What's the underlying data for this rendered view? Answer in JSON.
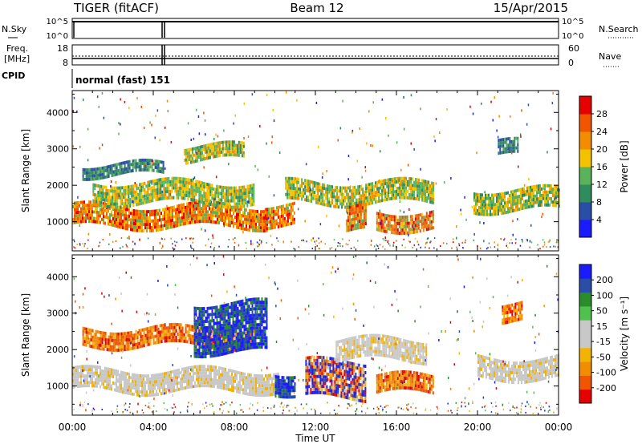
{
  "header": {
    "title": "TIGER (fitACF)",
    "beam": "Beam 12",
    "date": "15/Apr/2015"
  },
  "side_labels": {
    "nsky": "N.Sky",
    "nsearch": "N.Search",
    "freq_line1": "Freq.",
    "freq_line2": "[MHz]",
    "nave": "Nave",
    "cpid": "CPID",
    "cpid_value": "normal (fast) 151"
  },
  "strip_ticks": {
    "nsky_left": [
      "10^5",
      "10^0"
    ],
    "nsky_right": [
      "10^5",
      "10^0"
    ],
    "freq_left": [
      "18",
      "8"
    ],
    "freq_right": [
      "60",
      "0"
    ]
  },
  "colors": {
    "power_scale": [
      "#1b1bff",
      "#2a4ea8",
      "#2f8c5c",
      "#5ab25a",
      "#f2c200",
      "#f28c00",
      "#f25500",
      "#e60000"
    ],
    "velocity_scale": [
      "#e60000",
      "#f25500",
      "#f28c00",
      "#f2b400",
      "#c8c8c8",
      "#c8c8c8",
      "#4fc14f",
      "#2a8c2a",
      "#2a4ea8",
      "#1b1bff"
    ]
  },
  "chart_data": [
    {
      "type": "heatmap",
      "name": "power",
      "ylabel": "Slant Range [km]",
      "ylim": [
        200,
        4600
      ],
      "y_ticks": [
        1000,
        2000,
        3000,
        4000
      ],
      "colorbar_label": "Power [dB]",
      "colorbar_ticks": [
        4,
        8,
        12,
        16,
        20,
        24,
        28
      ],
      "colorbar_range": [
        0,
        32
      ],
      "bands": [
        {
          "t_start": 0.0,
          "t_end": 9.6,
          "r_low": 850,
          "r_high": 1450,
          "level": "high"
        },
        {
          "t_start": 1.0,
          "t_end": 9.0,
          "r_low": 1500,
          "r_high": 2100,
          "level": "medium"
        },
        {
          "t_start": 0.5,
          "t_end": 4.5,
          "r_low": 2300,
          "r_high": 2600,
          "level": "low"
        },
        {
          "t_start": 5.5,
          "t_end": 8.5,
          "r_low": 2700,
          "r_high": 3100,
          "level": "medium"
        },
        {
          "t_start": 9.5,
          "t_end": 11.0,
          "r_low": 900,
          "r_high": 1500,
          "level": "high"
        },
        {
          "t_start": 10.5,
          "t_end": 17.8,
          "r_low": 1500,
          "r_high": 2100,
          "level": "medium"
        },
        {
          "t_start": 13.5,
          "t_end": 14.5,
          "r_low": 700,
          "r_high": 1400,
          "level": "high"
        },
        {
          "t_start": 15.0,
          "t_end": 17.8,
          "r_low": 800,
          "r_high": 1300,
          "level": "high"
        },
        {
          "t_start": 19.8,
          "t_end": 24.0,
          "r_low": 1300,
          "r_high": 1900,
          "level": "medium"
        },
        {
          "t_start": 21.0,
          "t_end": 22.0,
          "r_low": 2800,
          "r_high": 3200,
          "level": "low"
        }
      ]
    },
    {
      "type": "heatmap",
      "name": "velocity",
      "ylabel": "Slant Range [km]",
      "ylim": [
        200,
        4600
      ],
      "y_ticks": [
        1000,
        2000,
        3000,
        4000
      ],
      "colorbar_label": "Velocity [m s⁻¹]",
      "colorbar_ticks": [
        200,
        100,
        50,
        15,
        -15,
        -50,
        -100,
        -200
      ],
      "bands": [
        {
          "t_start": 0.0,
          "t_end": 10.2,
          "r_low": 900,
          "r_high": 1450,
          "level": "ground"
        },
        {
          "t_start": 0.5,
          "t_end": 9.0,
          "r_low": 2100,
          "r_high": 2600,
          "level": "negative"
        },
        {
          "t_start": 6.0,
          "t_end": 9.6,
          "r_low": 1900,
          "r_high": 3300,
          "level": "positive"
        },
        {
          "t_start": 10.0,
          "t_end": 11.0,
          "r_low": 800,
          "r_high": 1400,
          "level": "positive"
        },
        {
          "t_start": 11.5,
          "t_end": 14.5,
          "r_low": 700,
          "r_high": 1700,
          "level": "mixed"
        },
        {
          "t_start": 15.0,
          "t_end": 17.8,
          "r_low": 800,
          "r_high": 1300,
          "level": "negative"
        },
        {
          "t_start": 13.0,
          "t_end": 17.5,
          "r_low": 1700,
          "r_high": 2300,
          "level": "ground"
        },
        {
          "t_start": 20.0,
          "t_end": 24.0,
          "r_low": 1200,
          "r_high": 1800,
          "level": "ground"
        },
        {
          "t_start": 21.2,
          "t_end": 22.2,
          "r_low": 2800,
          "r_high": 3300,
          "level": "negative"
        }
      ]
    }
  ],
  "x_axis": {
    "label": "Time UT",
    "range": [
      0,
      24
    ],
    "ticks": [
      "00:00",
      "04:00",
      "08:00",
      "12:00",
      "16:00",
      "20:00",
      "00:00"
    ]
  }
}
